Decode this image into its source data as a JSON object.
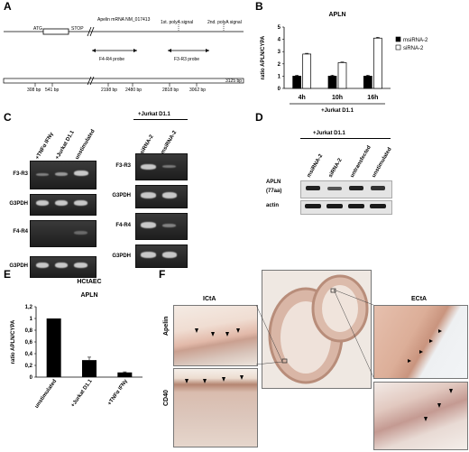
{
  "panels": {
    "a": "A",
    "b": "B",
    "c": "C",
    "d": "D",
    "e": "E",
    "f": "F"
  },
  "panel_a": {
    "mrna_label": "Apelin mRNA NM_017413",
    "atg": "ATG",
    "stop": "STOP",
    "polya1": "1st. polyA signal",
    "polya2": "2nd. polyA signal",
    "probe1": "F4-R4 probe",
    "probe2": "F3-R3 probe",
    "ticks": [
      "308 bp",
      "541 bp",
      "2198 bp",
      "2480 bp",
      "2818 bp",
      "3062 bp"
    ],
    "end_label": "3125 bp"
  },
  "panel_c": {
    "left_lanes": [
      "+TNFα IFNγ",
      "+Jurkat D1.1",
      "unstimulated"
    ],
    "right_header": "+Jurkat D1.1",
    "right_lanes": [
      "siRNA-2",
      "msiRNA-2"
    ],
    "rows": [
      "F3-R3",
      "G3PDH",
      "F4-R4",
      "G3PDH"
    ]
  },
  "panel_d": {
    "header": "+Jurkat D1.1",
    "lanes": [
      "msiRNA-2",
      "siRNA-2",
      "untransfected",
      "unstimulated"
    ],
    "row1": "APLN",
    "row1b": "(77aa)",
    "row2": "actin"
  },
  "panel_f": {
    "icta": "ICtA",
    "ecta": "ECtA",
    "apelin": "Apelin",
    "cd40": "CD40"
  },
  "chart_data": [
    {
      "type": "bar",
      "title": "APLN",
      "ylabel": "ratio APLN/CYPA",
      "xlabel": "+Jurkat D1.1",
      "categories": [
        "4h",
        "10h",
        "16h"
      ],
      "ylim": [
        0,
        5
      ],
      "yticks": [
        0,
        1,
        2,
        3,
        4,
        5
      ],
      "series": [
        {
          "name": "msiRNA-2",
          "values": [
            1.0,
            1.0,
            1.0
          ],
          "errors": [
            0.08,
            0.08,
            0.08
          ],
          "color": "#000000"
        },
        {
          "name": "siRNA-2",
          "values": [
            2.8,
            2.1,
            4.1
          ],
          "errors": [
            0.06,
            0.05,
            0.07
          ],
          "color": "#ffffff"
        }
      ],
      "legend": "right"
    },
    {
      "type": "bar",
      "title": "APLN",
      "subtitle": "HCtAEC",
      "ylabel": "ratio APLN/CYPA",
      "categories": [
        "unstimulated",
        "+Jurkat D1.1",
        "+TNFα IFNγ"
      ],
      "ylim": [
        0,
        1.2
      ],
      "yticks": [
        0,
        0.2,
        0.4,
        0.6,
        0.8,
        1,
        1.2
      ],
      "ytick_labels": [
        "0",
        "0,2",
        "0,4",
        "0,6",
        "0,8",
        "1",
        "1,2"
      ],
      "series": [
        {
          "name": "",
          "values": [
            1.0,
            0.29,
            0.08
          ],
          "errors": [
            0,
            0.05,
            0.01
          ],
          "color": "#000000"
        }
      ]
    }
  ]
}
